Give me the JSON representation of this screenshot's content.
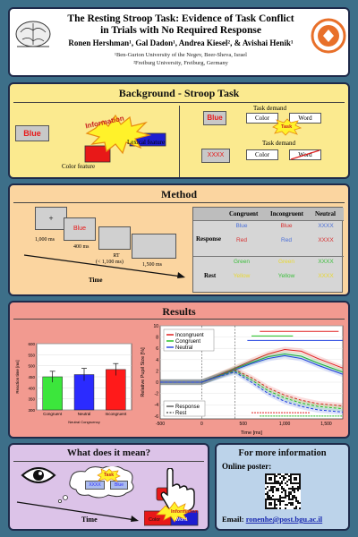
{
  "header": {
    "title_line1": "The Resting Stroop Task: Evidence of Task Conflict",
    "title_line2": "in Trials with No Required Response",
    "authors": "Ronen Hershman¹, Gal Dadon¹, Andrea Kiesel², & Avishai Henik¹",
    "affil1": "¹Ben-Gurion University of the Negev, Beer-Sheva, Israel",
    "affil2": "²Freiburg University, Freiburg, Germany"
  },
  "background": {
    "title": "Background - Stroop Task",
    "stroop_word": "Blue",
    "burst_text": "Information",
    "color_feature": "Color feature",
    "lexical_feature": "Lexical feature",
    "task_demand": "Task demand",
    "color": "Color",
    "word": "Word",
    "task": "Task",
    "xxxx": "XXXX"
  },
  "method": {
    "title": "Method",
    "plus": "+",
    "t1": "1,000 ms",
    "t2": "400 ms",
    "rt_line1": "RT",
    "rt_line2": "(< 1,100 ms)",
    "t4": "1,500 ms",
    "time": "Time",
    "stim_word": "Blue",
    "table": {
      "headers": [
        "Congruent",
        "Incongruent",
        "Neutral"
      ],
      "rows": [
        "Response",
        "Rest"
      ],
      "cells": [
        [
          {
            "t": "Blue",
            "c": "#4a6fd8"
          },
          {
            "t": "Blue",
            "c": "#d83030"
          },
          {
            "t": "XXXX",
            "c": "#4a6fd8"
          }
        ],
        [
          {
            "t": "Red",
            "c": "#d83030"
          },
          {
            "t": "Red",
            "c": "#4a6fd8"
          },
          {
            "t": "XXXX",
            "c": "#d83030"
          }
        ],
        [
          {
            "t": "Green",
            "c": "#3cbf3c"
          },
          {
            "t": "Green",
            "c": "#e8d830"
          },
          {
            "t": "XXXX",
            "c": "#3cbf3c"
          }
        ],
        [
          {
            "t": "Yellow",
            "c": "#e8d830"
          },
          {
            "t": "Yellow",
            "c": "#3cbf3c"
          },
          {
            "t": "XXXX",
            "c": "#e8d830"
          }
        ]
      ]
    }
  },
  "results": {
    "title": "Results"
  },
  "chart_data": [
    {
      "type": "bar",
      "categories": [
        "Congruent",
        "Neutral",
        "Incongruent"
      ],
      "xlabel": "Neutral Congruency",
      "ylabel": "Reaction time [ms]",
      "values": [
        450,
        460,
        483
      ],
      "errors": [
        25,
        28,
        27
      ],
      "colors": [
        "#3ce63c",
        "#2b2bff",
        "#ff1a1a"
      ],
      "ylim": [
        300,
        600
      ],
      "yticks": [
        300,
        350,
        400,
        450,
        500,
        550,
        600
      ]
    },
    {
      "type": "line",
      "xlabel": "Time [ms]",
      "ylabel": "Relative Pupil Size [%]",
      "xlim": [
        -500,
        1700
      ],
      "ylim": [
        -6.5,
        10
      ],
      "xticks": [
        -500,
        0,
        500,
        1000,
        1500
      ],
      "xticklabels": [
        "-500",
        "0",
        "500",
        "1,000",
        "1,500"
      ],
      "yticks": [
        -6,
        -4,
        -2,
        0,
        2,
        4,
        6,
        8,
        10
      ],
      "series": [
        {
          "name": "Incongruent",
          "color": "#e02020",
          "style": "solid",
          "x": [
            -500,
            0,
            200,
            400,
            600,
            800,
            1000,
            1200,
            1400,
            1700
          ],
          "y": [
            0,
            0,
            1.2,
            2.5,
            3.8,
            5,
            5.8,
            5.5,
            4.2,
            2.5
          ]
        },
        {
          "name": "Congruent",
          "color": "#20c020",
          "style": "solid",
          "x": [
            -500,
            0,
            200,
            400,
            600,
            800,
            1000,
            1200,
            1400,
            1700
          ],
          "y": [
            0,
            0,
            1.1,
            2.4,
            3.5,
            4.5,
            5,
            4.6,
            3.4,
            1.8
          ]
        },
        {
          "name": "Neutral",
          "color": "#2040e0",
          "style": "solid",
          "x": [
            -500,
            0,
            200,
            400,
            600,
            800,
            1000,
            1200,
            1400,
            1700
          ],
          "y": [
            0,
            0,
            1,
            2.2,
            3.3,
            4.2,
            4.7,
            4.2,
            3,
            1.4
          ]
        },
        {
          "name": "Incongruent",
          "color": "#e02020",
          "style": "dashed",
          "x": [
            -500,
            0,
            200,
            400,
            600,
            800,
            1000,
            1200,
            1400,
            1700
          ],
          "y": [
            0,
            0,
            1.2,
            2.2,
            0.8,
            -1,
            -2.3,
            -3.2,
            -3.8,
            -4.2
          ]
        },
        {
          "name": "Congruent",
          "color": "#20c020",
          "style": "dashed",
          "x": [
            -500,
            0,
            200,
            400,
            600,
            800,
            1000,
            1200,
            1400,
            1700
          ],
          "y": [
            0,
            0,
            1.1,
            2,
            0.4,
            -1.5,
            -2.8,
            -3.7,
            -4.3,
            -4.7
          ]
        },
        {
          "name": "Neutral",
          "color": "#2040e0",
          "style": "dashed",
          "x": [
            -500,
            0,
            200,
            400,
            600,
            800,
            1000,
            1200,
            1400,
            1700
          ],
          "y": [
            0,
            0,
            1,
            1.8,
            0,
            -2,
            -3.4,
            -4.3,
            -4.9,
            -5.3
          ]
        }
      ],
      "legend_colors": [
        "Incongruent",
        "Congruent",
        "Neutral"
      ],
      "legend_styles": [
        "Response",
        "Rest"
      ]
    }
  ],
  "meaning": {
    "title": "What does it mean?",
    "task": "Task",
    "xxxx": "XXXX",
    "blue": "Blue",
    "information": "Information",
    "color": "Color",
    "word": "Word",
    "time": "Time"
  },
  "info": {
    "title": "For more information",
    "online": "Online poster:",
    "email_label": "Email:",
    "email": "ronenhe@post.bgu.ac.il"
  }
}
